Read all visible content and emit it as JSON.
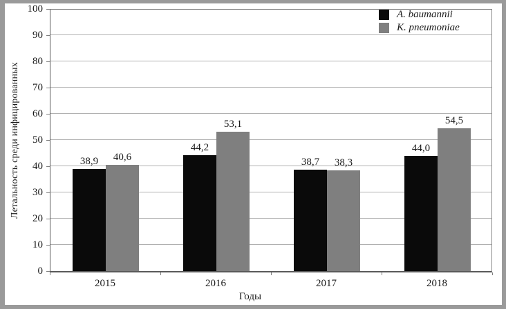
{
  "frame": {
    "border_color": "#9a9a9a",
    "background": "#ffffff"
  },
  "chart_data": {
    "type": "bar",
    "title": "",
    "categories": [
      "2015",
      "2016",
      "2017",
      "2018"
    ],
    "series": [
      {
        "name": "A. baumannii",
        "color": "#0a0a0a",
        "values": [
          38.9,
          44.2,
          38.7,
          44.0
        ],
        "labels": [
          "38,9",
          "44,2",
          "38,7",
          "44,0"
        ]
      },
      {
        "name": "K. pneumoniae",
        "color": "#7f7f7f",
        "values": [
          40.6,
          53.1,
          38.3,
          54.5
        ],
        "labels": [
          "40,6",
          "53,1",
          "38,3",
          "54,5"
        ]
      }
    ],
    "xlabel": "Годы",
    "ylabel": "Летальность среди инфицированных",
    "ylim": [
      0,
      100
    ],
    "ytick_step": 10,
    "yticks": [
      "0",
      "10",
      "20",
      "30",
      "40",
      "50",
      "60",
      "70",
      "80",
      "90",
      "100"
    ],
    "grid": true,
    "gridline_color": "#b0b0b0",
    "legend_position": "top-right"
  }
}
